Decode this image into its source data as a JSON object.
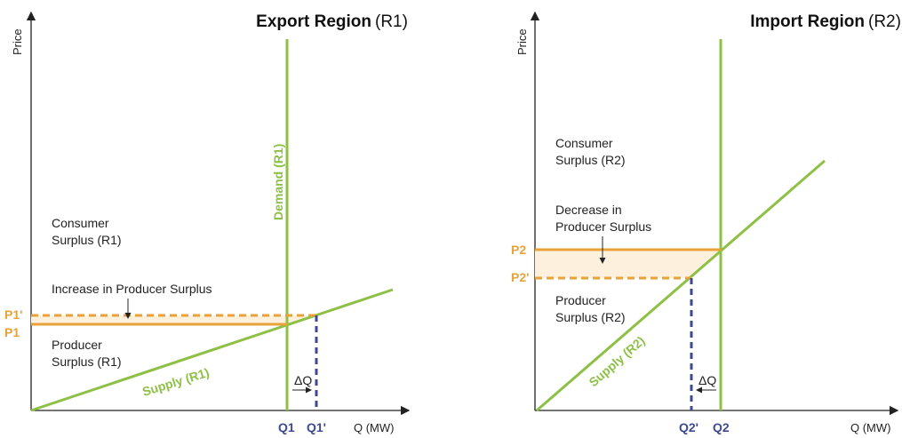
{
  "left": {
    "title_bold": "Export Region",
    "title_suffix": "(R1)",
    "y_axis": "Price",
    "x_axis": "Q (MW)",
    "demand_label": "Demand (R1)",
    "supply_label": "Supply (R1)",
    "consumer_surplus": [
      "Consumer",
      "Surplus (R1)"
    ],
    "change_label": "Increase in Producer Surplus",
    "producer_surplus": [
      "Producer",
      "Surplus (R1)"
    ],
    "price_new": "P1'",
    "price_old": "P1",
    "q_old": "Q1",
    "q_new": "Q1'",
    "delta": "ΔQ"
  },
  "right": {
    "title_bold": "Import Region",
    "title_suffix": "(R2)",
    "y_axis": "Price",
    "x_axis": "Q (MW)",
    "supply_label": "Supply (R2)",
    "consumer_surplus": [
      "Consumer",
      "Surplus (R2)"
    ],
    "change_label": [
      "Decrease in",
      "Producer Surplus"
    ],
    "producer_surplus": [
      "Producer",
      "Surplus (R2)"
    ],
    "price_old": "P2",
    "price_new": "P2'",
    "q_new": "Q2'",
    "q_old": "Q2",
    "delta": "ΔQ"
  },
  "colors": {
    "supply": "#8dc045",
    "demand": "#8dc045",
    "price": "#e8a23a",
    "quantity": "#3d4a8f",
    "surplus_fill": "#fdf1dd"
  }
}
